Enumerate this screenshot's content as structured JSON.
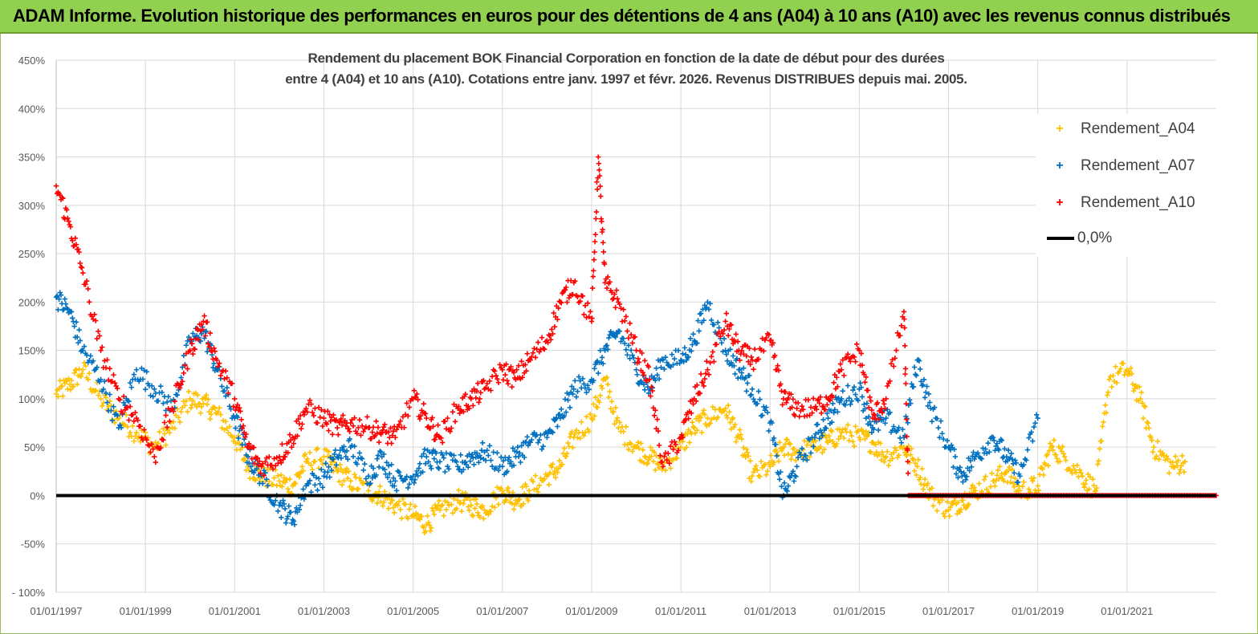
{
  "banner": {
    "title": "ADAM Informe. Evolution historique des performances en euros pour des détentions de 4 ans (A04) à 10 ans (A10) avec les revenus connus distribués"
  },
  "colors": {
    "banner_bg": "#92d050",
    "A04": "#ffc000",
    "A07": "#0070c0",
    "A10": "#ff0000",
    "zero": "#000000",
    "grid": "#d9d9d9"
  },
  "chart_data": {
    "type": "scatter",
    "title_line1": "Rendement du placement BOK Financial Corporation en fonction de la date de début pour des durées",
    "title_line2": "entre 4 (A04) et 10 ans (A10). Cotations entre janv. 1997 et févr. 2026. Revenus DISTRIBUES depuis mai. 2005.",
    "xlabel": "",
    "ylabel": "",
    "x_range": [
      1997.0,
      2023.0
    ],
    "ylim": [
      -100,
      450
    ],
    "y_ticks": [
      -100,
      -50,
      0,
      50,
      100,
      150,
      200,
      250,
      300,
      350,
      400,
      450
    ],
    "y_tick_labels": [
      "- 100%",
      "-50%",
      "0%",
      "50%",
      "100%",
      "150%",
      "200%",
      "250%",
      "300%",
      "350%",
      "400%",
      "450%"
    ],
    "x_ticks": [
      1997,
      1999,
      2001,
      2003,
      2005,
      2007,
      2009,
      2011,
      2013,
      2015,
      2017,
      2019,
      2021
    ],
    "x_tick_labels": [
      "01/01/1997",
      "01/01/1999",
      "01/01/2001",
      "01/01/2003",
      "01/01/2005",
      "01/01/2007",
      "01/01/2009",
      "01/01/2011",
      "01/01/2013",
      "01/01/2015",
      "01/01/2017",
      "01/01/2019",
      "01/01/2021"
    ],
    "marker": "+",
    "legend_position": "top-right",
    "series": [
      {
        "name": "Rendement_A04",
        "color": "#ffc000",
        "x": [
          1997.0,
          1997.3,
          1997.6,
          1998.0,
          1998.4,
          1998.8,
          1999.2,
          1999.6,
          2000.0,
          2000.3,
          2000.6,
          2001.0,
          2001.3,
          2001.6,
          2002.0,
          2002.3,
          2002.6,
          2003.0,
          2003.3,
          2003.6,
          2004.0,
          2004.3,
          2004.6,
          2005.0,
          2005.3,
          2005.6,
          2006.0,
          2006.3,
          2006.6,
          2007.0,
          2007.3,
          2007.6,
          2008.0,
          2008.3,
          2008.6,
          2009.0,
          2009.3,
          2009.6,
          2010.0,
          2010.3,
          2010.6,
          2011.0,
          2011.3,
          2011.6,
          2012.0,
          2012.3,
          2012.6,
          2013.0,
          2013.3,
          2013.6,
          2014.0,
          2014.3,
          2014.6,
          2015.0,
          2015.3,
          2015.6,
          2016.0,
          2016.3,
          2016.6,
          2017.0,
          2017.3,
          2017.6,
          2018.0,
          2018.3,
          2018.6,
          2019.0,
          2019.3,
          2019.6,
          2020.0,
          2020.3,
          2020.6,
          2021.0,
          2021.3,
          2021.6,
          2022.0,
          2022.3
        ],
        "values": [
          105,
          115,
          130,
          100,
          80,
          65,
          50,
          70,
          100,
          95,
          85,
          60,
          30,
          20,
          15,
          10,
          35,
          40,
          25,
          15,
          5,
          0,
          -10,
          -20,
          -30,
          -15,
          -5,
          -10,
          -15,
          5,
          -5,
          5,
          20,
          30,
          60,
          80,
          120,
          70,
          50,
          40,
          30,
          50,
          70,
          80,
          90,
          60,
          20,
          30,
          50,
          45,
          50,
          55,
          65,
          60,
          55,
          40,
          50,
          30,
          0,
          -15,
          -5,
          5,
          15,
          25,
          5,
          10,
          50,
          40,
          20,
          5,
          120,
          130,
          100,
          50,
          30,
          35
        ]
      },
      {
        "name": "Rendement_A07",
        "color": "#0070c0",
        "x": [
          1997.0,
          1997.3,
          1997.6,
          1998.0,
          1998.4,
          1998.8,
          1999.2,
          1999.6,
          2000.0,
          2000.3,
          2000.6,
          2001.0,
          2001.3,
          2001.6,
          2002.0,
          2002.3,
          2002.6,
          2003.0,
          2003.3,
          2003.6,
          2004.0,
          2004.3,
          2004.6,
          2005.0,
          2005.3,
          2005.6,
          2006.0,
          2006.3,
          2006.6,
          2007.0,
          2007.3,
          2007.6,
          2008.0,
          2008.3,
          2008.6,
          2009.0,
          2009.3,
          2009.6,
          2010.0,
          2010.3,
          2010.6,
          2011.0,
          2011.3,
          2011.6,
          2012.0,
          2012.3,
          2012.6,
          2013.0,
          2013.3,
          2013.6,
          2014.0,
          2014.3,
          2014.6,
          2015.0,
          2015.3,
          2015.6,
          2016.0,
          2016.3,
          2016.6,
          2017.0,
          2017.3,
          2017.6,
          2018.0,
          2018.3,
          2018.6,
          2019.0
        ],
        "values": [
          205,
          190,
          150,
          120,
          70,
          130,
          110,
          90,
          160,
          170,
          130,
          80,
          40,
          20,
          -10,
          -25,
          10,
          20,
          40,
          50,
          20,
          40,
          15,
          20,
          40,
          35,
          30,
          40,
          45,
          30,
          40,
          55,
          60,
          80,
          110,
          120,
          150,
          170,
          130,
          110,
          140,
          140,
          160,
          200,
          150,
          130,
          110,
          75,
          0,
          30,
          60,
          80,
          100,
          110,
          70,
          80,
          60,
          140,
          90,
          50,
          20,
          40,
          60,
          40,
          20,
          80
        ]
      },
      {
        "name": "Rendement_A10",
        "color": "#ff0000",
        "x": [
          1997.0,
          1997.3,
          1997.6,
          1998.0,
          1998.4,
          1998.8,
          1999.2,
          1999.6,
          2000.0,
          2000.3,
          2000.6,
          2001.0,
          2001.3,
          2001.6,
          2002.0,
          2002.3,
          2002.6,
          2003.0,
          2003.3,
          2003.6,
          2004.0,
          2004.3,
          2004.6,
          2005.0,
          2005.3,
          2005.6,
          2006.0,
          2006.3,
          2006.6,
          2007.0,
          2007.3,
          2007.6,
          2008.0,
          2008.3,
          2008.6,
          2009.0,
          2009.15,
          2009.3,
          2009.6,
          2010.0,
          2010.3,
          2010.6,
          2011.0,
          2011.3,
          2011.6,
          2012.0,
          2012.3,
          2012.6,
          2013.0,
          2013.3,
          2013.6,
          2014.0,
          2014.3,
          2014.6,
          2015.0,
          2015.3,
          2015.6,
          2016.0,
          2016.1,
          2016.5,
          2017.0,
          2017.5,
          2018.0,
          2018.5,
          2019.0,
          2019.5,
          2020.0,
          2020.5,
          2021.0,
          2021.5,
          2022.0,
          2022.5,
          2023.0
        ],
        "values": [
          320,
          280,
          230,
          150,
          100,
          80,
          40,
          90,
          150,
          180,
          140,
          100,
          50,
          30,
          40,
          60,
          90,
          80,
          70,
          75,
          70,
          65,
          60,
          100,
          80,
          60,
          90,
          100,
          110,
          130,
          120,
          140,
          160,
          200,
          220,
          180,
          350,
          220,
          200,
          150,
          120,
          30,
          60,
          100,
          130,
          180,
          150,
          140,
          160,
          100,
          90,
          90,
          100,
          130,
          150,
          80,
          100,
          190,
          0,
          0,
          0,
          0,
          0,
          0,
          0,
          0,
          0,
          0,
          0,
          0,
          0,
          0,
          0
        ]
      },
      {
        "name": "0,0%",
        "color": "#000000",
        "x": [
          1997.0,
          2023.0
        ],
        "values": [
          0,
          0
        ]
      }
    ]
  }
}
